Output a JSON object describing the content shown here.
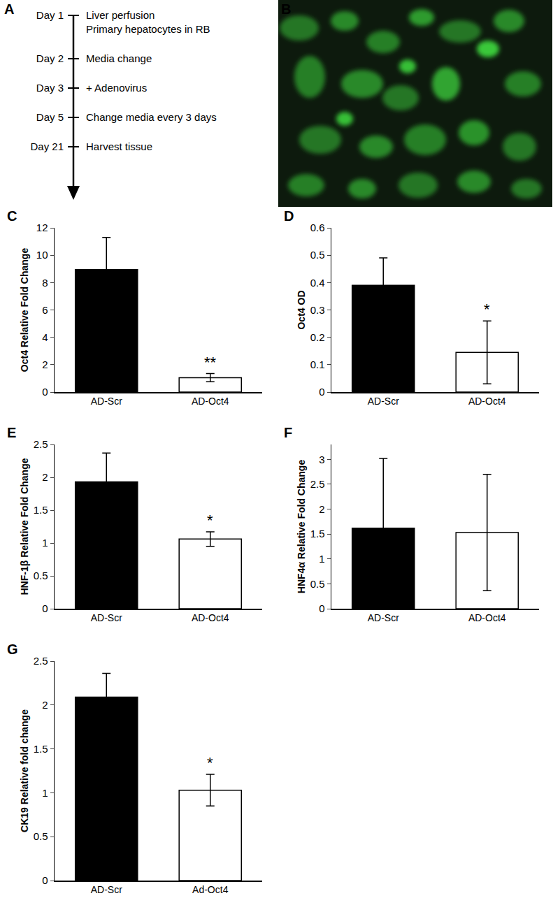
{
  "timeline": {
    "panel": "A",
    "events": [
      {
        "day": "Day 1",
        "text": [
          "Liver perfusion",
          "Primary hepatocytes in RB"
        ]
      },
      {
        "day": "Day 2",
        "text": [
          "Media change"
        ]
      },
      {
        "day": "Day 3",
        "text": [
          "+ Adenovirus"
        ]
      },
      {
        "day": "Day 5",
        "text": [
          "Change media every 3 days"
        ]
      },
      {
        "day": "Day 21",
        "text": [
          "Harvest tissue"
        ]
      }
    ]
  },
  "image": {
    "panel": "B"
  },
  "chart_data": [
    {
      "panel": "C",
      "type": "bar",
      "y_label": "Oct4 Relative Fold Change",
      "categories": [
        "AD-Scr",
        "AD-Oct4"
      ],
      "values": [
        8.95,
        1.05
      ],
      "errors": [
        2.35,
        0.3
      ],
      "colors": [
        "#000000",
        "#ffffff"
      ],
      "ylim": [
        0,
        12
      ],
      "yticks": [
        0,
        2,
        4,
        6,
        8,
        10,
        12
      ],
      "annotations": [
        {
          "text": "**",
          "category": 1
        }
      ]
    },
    {
      "panel": "D",
      "type": "bar",
      "y_label": "Oct4 OD",
      "categories": [
        "AD-Scr",
        "AD-Oct4"
      ],
      "values": [
        0.39,
        0.145
      ],
      "errors": [
        0.1,
        0.115
      ],
      "colors": [
        "#000000",
        "#ffffff"
      ],
      "ylim": [
        0,
        0.6
      ],
      "yticks": [
        0,
        0.1,
        0.2,
        0.3,
        0.4,
        0.5,
        0.6
      ],
      "annotations": [
        {
          "text": "*",
          "category": 1
        }
      ]
    },
    {
      "panel": "E",
      "type": "bar",
      "y_label": "HNF-1β Relative Fold Change",
      "categories": [
        "AD-Scr",
        "AD-Oct4"
      ],
      "values": [
        1.93,
        1.06
      ],
      "errors": [
        0.44,
        0.11
      ],
      "colors": [
        "#000000",
        "#ffffff"
      ],
      "ylim": [
        0,
        2.5
      ],
      "yticks": [
        0,
        0.5,
        1,
        1.5,
        2,
        2.5
      ],
      "annotations": [
        {
          "text": "*",
          "category": 1
        }
      ]
    },
    {
      "panel": "F",
      "type": "bar",
      "y_label": "HNF4α Relative Fold Change",
      "categories": [
        "AD-Scr",
        "AD-Oct4"
      ],
      "values": [
        1.62,
        1.53
      ],
      "errors": [
        1.4,
        1.17
      ],
      "colors": [
        "#000000",
        "#ffffff"
      ],
      "ylim": [
        0,
        3.3
      ],
      "yticks": [
        0,
        0.5,
        1,
        1.5,
        2,
        2.5,
        3
      ]
    },
    {
      "panel": "G",
      "type": "bar",
      "y_label": "CK19 Relative fold change",
      "categories": [
        "AD-Scr",
        "Ad-Oct4"
      ],
      "values": [
        2.09,
        1.03
      ],
      "errors": [
        0.27,
        0.18
      ],
      "colors": [
        "#000000",
        "#ffffff"
      ],
      "ylim": [
        0,
        2.5
      ],
      "yticks": [
        0,
        0.5,
        1,
        1.5,
        2,
        2.5
      ],
      "annotations": [
        {
          "text": "*",
          "category": 1
        }
      ]
    }
  ]
}
